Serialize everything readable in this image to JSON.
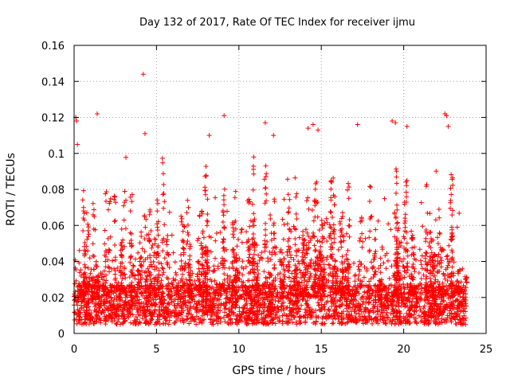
{
  "chart_data": {
    "type": "scatter",
    "title": "Day 132 of 2017, Rate Of TEC Index for receiver ijmu",
    "xlabel": "GPS time / hours",
    "ylabel": "ROTI / TECUs",
    "xlim": [
      0,
      25
    ],
    "ylim": [
      0,
      0.16
    ],
    "grid": true,
    "marker": "+",
    "color": "#ff0000",
    "xticks": [
      0,
      5,
      10,
      15,
      20,
      25
    ],
    "xtick_labels": [
      "0",
      "5",
      "10",
      "15",
      "20",
      "25"
    ],
    "yticks": [
      0,
      0.02,
      0.04,
      0.06,
      0.08,
      0.1,
      0.12,
      0.14,
      0.16
    ],
    "ytick_labels": [
      "0",
      "0.02",
      "0.04",
      "0.06",
      "0.08",
      "0.1",
      "0.12",
      "0.14",
      "0.16"
    ],
    "data_range_x": [
      0,
      23.8
    ],
    "series": [
      {
        "name": "ROTI",
        "points_note": "dense cloud of individual ROTI samples; representative outliers listed",
        "x": [
          0.1,
          0.15,
          0.2,
          1.4,
          4.2,
          4.3,
          8.2,
          9.1,
          10.9,
          11.6,
          12.1,
          14.2,
          14.5,
          14.8,
          17.2,
          19.3,
          19.5,
          20.2,
          22.5,
          22.6,
          22.7
        ],
        "y": [
          0.12,
          0.118,
          0.105,
          0.122,
          0.144,
          0.111,
          0.11,
          0.121,
          0.098,
          0.117,
          0.11,
          0.114,
          0.116,
          0.113,
          0.116,
          0.118,
          0.117,
          0.115,
          0.122,
          0.121,
          0.115
        ]
      }
    ]
  }
}
